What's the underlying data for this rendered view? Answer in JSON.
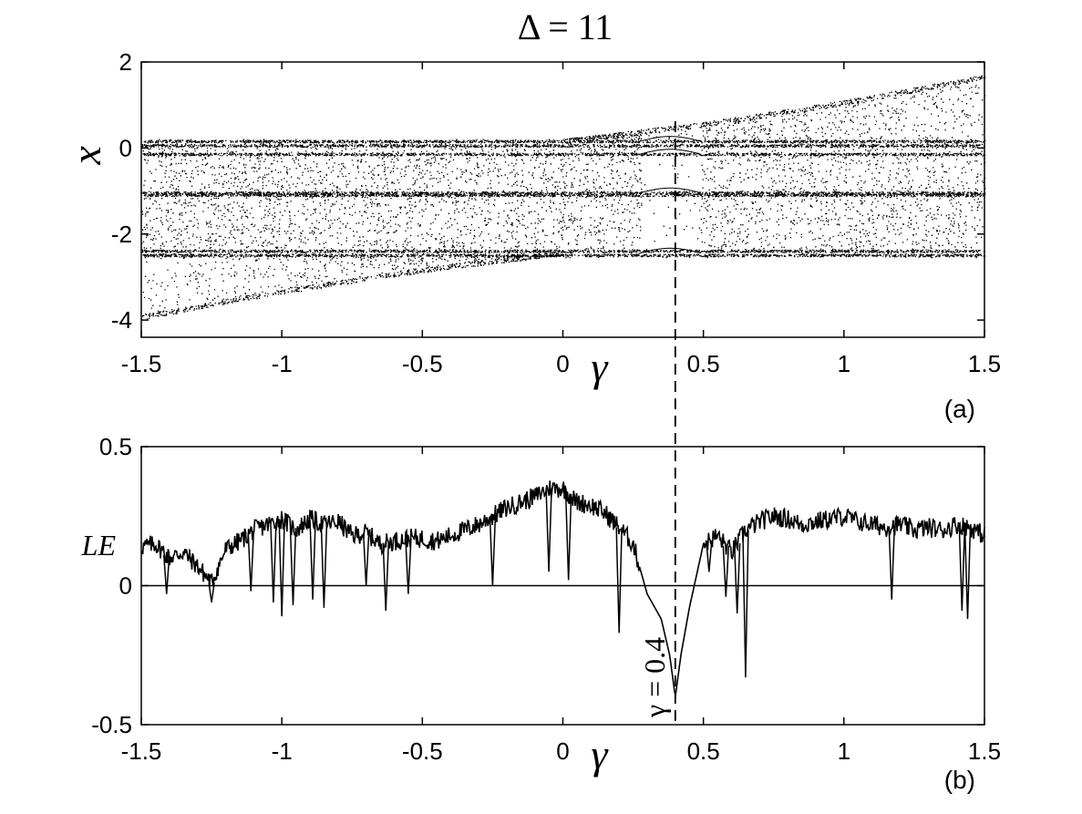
{
  "figure": {
    "title": "Δ = 11",
    "annotation": "γ = 0.4",
    "marker_x": 0.4
  },
  "chart_data": [
    {
      "type": "scatter",
      "panel_label": "(a)",
      "xlabel": "γ",
      "ylabel": "x",
      "xlim": [
        -1.5,
        1.5
      ],
      "ylim": [
        -4.4,
        2
      ],
      "xticks": [
        "-1.5",
        "-1",
        "-0.5",
        "0",
        "0.5",
        "1",
        "1.5"
      ],
      "yticks": [
        "2",
        "0",
        "-2",
        "-4"
      ],
      "grid": false,
      "bands": [
        0.15,
        0.05,
        -0.15,
        -1.05,
        -1.1,
        -2.4,
        -2.5
      ],
      "upper_branch": {
        "x": [
          0.0,
          0.5,
          1.0,
          1.5
        ],
        "y": [
          0.2,
          0.6,
          1.1,
          1.7
        ]
      },
      "lower_branch": {
        "x": [
          -1.5,
          -1.0,
          -0.5,
          0.0
        ],
        "y": [
          -4.0,
          -3.4,
          -2.9,
          -2.5
        ]
      }
    },
    {
      "type": "line",
      "panel_label": "(b)",
      "xlabel": "γ",
      "ylabel": "LE",
      "xlim": [
        -1.5,
        1.5
      ],
      "ylim": [
        -0.5,
        0.5
      ],
      "xticks": [
        "-1.5",
        "-1",
        "-0.5",
        "0",
        "0.5",
        "1",
        "1.5"
      ],
      "yticks": [
        "0.5",
        "0",
        "-0.5"
      ],
      "grid": false,
      "reference_line_y": 0,
      "x": [
        -1.5,
        -1.45,
        -1.4,
        -1.35,
        -1.3,
        -1.25,
        -1.2,
        -1.15,
        -1.1,
        -1.05,
        -1.0,
        -0.95,
        -0.9,
        -0.85,
        -0.8,
        -0.75,
        -0.7,
        -0.65,
        -0.6,
        -0.55,
        -0.5,
        -0.45,
        -0.4,
        -0.35,
        -0.3,
        -0.25,
        -0.2,
        -0.15,
        -0.1,
        -0.05,
        0.0,
        0.05,
        0.1,
        0.15,
        0.2,
        0.25,
        0.3,
        0.35,
        0.38,
        0.4,
        0.42,
        0.45,
        0.5,
        0.55,
        0.6,
        0.65,
        0.7,
        0.75,
        0.8,
        0.85,
        0.9,
        0.95,
        1.0,
        1.05,
        1.1,
        1.15,
        1.2,
        1.25,
        1.3,
        1.35,
        1.4,
        1.45,
        1.5
      ],
      "y": [
        0.14,
        0.15,
        0.1,
        0.12,
        0.07,
        0.01,
        0.13,
        0.16,
        0.2,
        0.22,
        0.24,
        0.2,
        0.24,
        0.22,
        0.23,
        0.18,
        0.19,
        0.15,
        0.16,
        0.17,
        0.17,
        0.16,
        0.18,
        0.2,
        0.22,
        0.25,
        0.28,
        0.3,
        0.32,
        0.35,
        0.35,
        0.3,
        0.29,
        0.26,
        0.21,
        0.15,
        -0.03,
        -0.12,
        -0.25,
        -0.4,
        -0.25,
        -0.08,
        0.15,
        0.18,
        0.12,
        0.2,
        0.23,
        0.25,
        0.24,
        0.22,
        0.23,
        0.24,
        0.25,
        0.23,
        0.22,
        0.21,
        0.22,
        0.2,
        0.21,
        0.2,
        0.22,
        0.21,
        0.18
      ],
      "dips": [
        {
          "x": -1.41,
          "y": -0.03
        },
        {
          "x": -1.25,
          "y": -0.06
        },
        {
          "x": -1.11,
          "y": -0.02
        },
        {
          "x": -1.03,
          "y": -0.06
        },
        {
          "x": -1.0,
          "y": -0.11
        },
        {
          "x": -0.96,
          "y": -0.07
        },
        {
          "x": -0.89,
          "y": -0.05
        },
        {
          "x": -0.85,
          "y": -0.08
        },
        {
          "x": -0.7,
          "y": 0.0
        },
        {
          "x": -0.63,
          "y": -0.09
        },
        {
          "x": -0.55,
          "y": -0.03
        },
        {
          "x": -0.25,
          "y": 0.0
        },
        {
          "x": -0.05,
          "y": 0.05
        },
        {
          "x": 0.02,
          "y": 0.02
        },
        {
          "x": 0.2,
          "y": -0.17
        },
        {
          "x": 0.52,
          "y": 0.05
        },
        {
          "x": 0.58,
          "y": -0.04
        },
        {
          "x": 0.62,
          "y": -0.1
        },
        {
          "x": 0.65,
          "y": -0.33
        },
        {
          "x": 1.17,
          "y": -0.05
        },
        {
          "x": 1.42,
          "y": -0.09
        },
        {
          "x": 1.44,
          "y": -0.12
        }
      ]
    }
  ]
}
